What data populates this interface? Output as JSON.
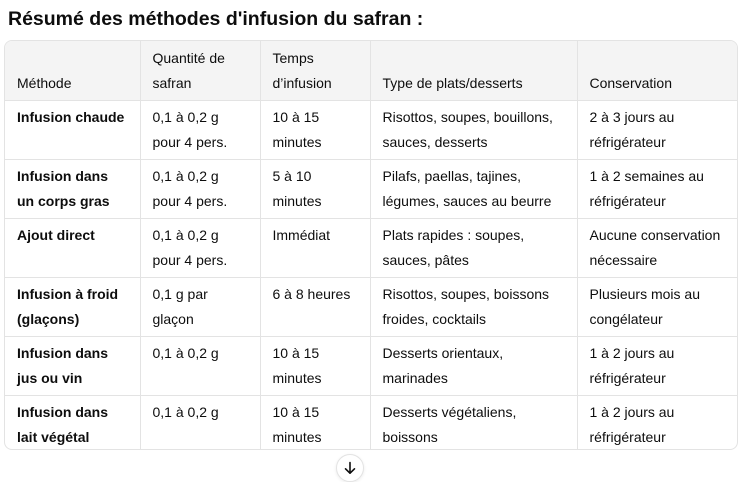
{
  "title": "Résumé des méthodes d'infusion du safran :",
  "table": {
    "headers": [
      "Méthode",
      "Quantité de safran",
      "Temps d’infusion",
      "Type de plats/desserts",
      "Conservation"
    ],
    "rows": [
      [
        "Infusion chaude",
        "0,1 à 0,2 g pour 4 pers.",
        "10 à 15 minutes",
        "Risottos, soupes, bouillons, sauces, desserts",
        "2 à 3 jours au réfrigérateur"
      ],
      [
        "Infusion dans un corps gras",
        "0,1 à 0,2 g pour 4 pers.",
        "5 à 10 minutes",
        "Pilafs, paellas, tajines, légumes, sauces au beurre",
        "1 à 2 semaines au réfrigérateur"
      ],
      [
        "Ajout direct",
        "0,1 à 0,2 g pour 4 pers.",
        "Immédiat",
        "Plats rapides : soupes, sauces, pâtes",
        "Aucune conservation nécessaire"
      ],
      [
        "Infusion à froid (glaçons)",
        "0,1 g par glaçon",
        "6 à 8 heures",
        "Risottos, soupes, boissons froides, cocktails",
        "Plusieurs mois au congélateur"
      ],
      [
        "Infusion dans jus ou vin",
        "0,1 à 0,2 g",
        "10 à 15 minutes",
        "Desserts orientaux, marinades",
        "1 à 2 jours au réfrigérateur"
      ],
      [
        "Infusion dans lait végétal",
        "0,1 à 0,2 g",
        "10 à 15 minutes",
        "Desserts végétaliens, boissons",
        "1 à 2 jours au réfrigérateur"
      ]
    ]
  },
  "scroll_button": {
    "icon": "arrow-down-icon"
  },
  "colors": {
    "text": "#0d0d0d",
    "header_bg": "#f4f4f4",
    "border": "#e3e3e3"
  }
}
